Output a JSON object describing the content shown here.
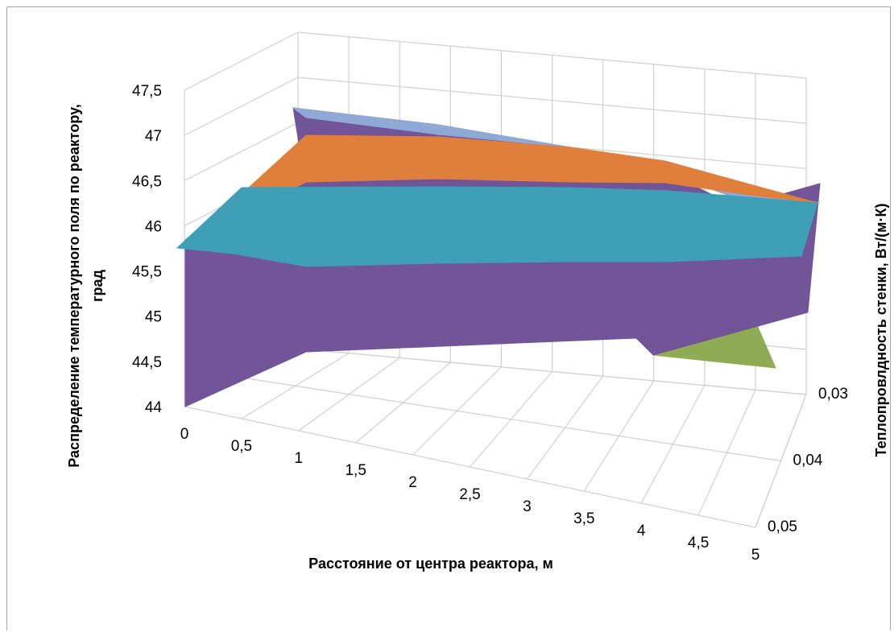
{
  "chart_data": {
    "type": "surface",
    "x_label": "Расстояние от центра реактора, м",
    "y_label_lines": [
      "Распределение температурного поля по реактору,",
      "град"
    ],
    "depth_label": "Теплопровлдность стенки, Вт/(м·К)",
    "x_ticks": [
      "0",
      "0,5",
      "1",
      "1,5",
      "2",
      "2,5",
      "3",
      "3,5",
      "4",
      "4,5",
      "5"
    ],
    "z_ticks": [
      "44",
      "44,5",
      "45",
      "45,5",
      "46",
      "46,5",
      "47",
      "47,5"
    ],
    "depth_ticks": [
      "0,03",
      "0,04",
      "0,05"
    ],
    "x": [
      0,
      5
    ],
    "depth": [
      0.05,
      0.04,
      0.03
    ],
    "z_range": [
      44,
      47.5
    ],
    "grid": true,
    "legend": "none",
    "bands": [
      {
        "range": [
          44,
          44.5
        ],
        "color": "#70ad47"
      },
      {
        "range": [
          44.5,
          45
        ],
        "color": "#8fac55"
      },
      {
        "range": [
          45,
          45.5
        ],
        "color": "#7a5b97"
      },
      {
        "range": [
          45.5,
          46
        ],
        "color": "#725599"
      },
      {
        "range": [
          46,
          46.5
        ],
        "color": "#3e9fb6"
      },
      {
        "range": [
          46.5,
          47
        ],
        "color": "#e07f3c"
      },
      {
        "range": [
          47,
          47.5
        ],
        "color": "#8fa8d6"
      }
    ]
  }
}
